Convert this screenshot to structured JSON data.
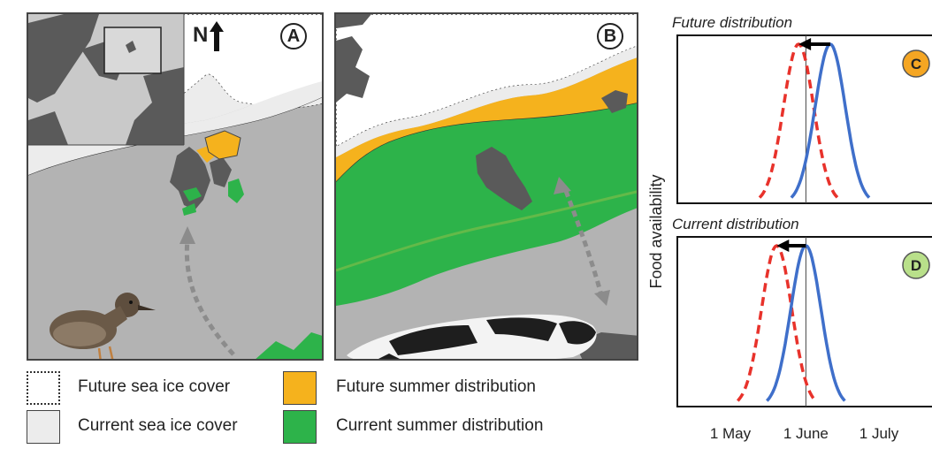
{
  "panels": {
    "a": {
      "letter": "A",
      "north_label": "N"
    },
    "b": {
      "letter": "B"
    }
  },
  "legend": {
    "future_ice": {
      "label": "Future sea ice cover",
      "color": "#ffffff"
    },
    "current_ice": {
      "label": "Current sea ice cover",
      "color": "#ececec"
    },
    "future_summer": {
      "label": "Future summer distribution",
      "color": "#f5b21d"
    },
    "current_summer": {
      "label": "Current summer distribution",
      "color": "#2db34a"
    }
  },
  "colors": {
    "land": "#5a5a5a",
    "ocean": "#b3b3b3",
    "migration_arrow": "#8c8c8c"
  },
  "chart_data": [
    {
      "type": "line",
      "panel": "C",
      "title": "Future distribution",
      "badge_color": "#f5a623",
      "x_ticks": [
        "1 May",
        "1 June",
        "1 July"
      ],
      "ylabel": "Food availability",
      "reference_line": "1 June",
      "series": [
        {
          "style": "dashed",
          "color": "#e8322b",
          "peak": "29 May"
        },
        {
          "style": "solid",
          "color": "#3f6fca",
          "peak": "11 June"
        }
      ],
      "shift_arrow": {
        "from": "11 June",
        "to": "29 May"
      }
    },
    {
      "type": "line",
      "panel": "D",
      "title": "Current distribution",
      "badge_color": "#b9e08a",
      "x_ticks": [
        "1 May",
        "1 June",
        "1 July"
      ],
      "ylabel": "Food availability",
      "reference_line": "1 June",
      "series": [
        {
          "style": "dashed",
          "color": "#e8322b",
          "peak": "20 May"
        },
        {
          "style": "solid",
          "color": "#3f6fca",
          "peak": "1 June"
        }
      ],
      "shift_arrow": {
        "from": "1 June",
        "to": "20 May"
      }
    }
  ]
}
